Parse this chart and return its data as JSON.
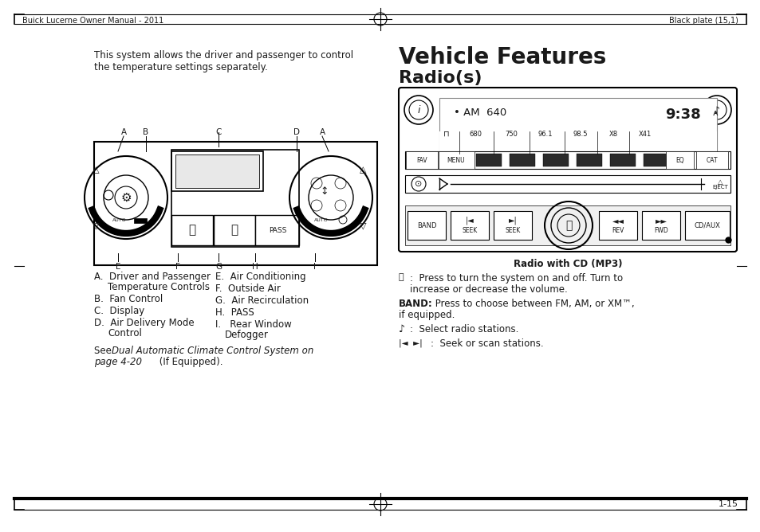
{
  "page_width": 9.54,
  "page_height": 6.68,
  "bg_color": "#ffffff",
  "header_left": "Buick Lucerne Owner Manual - 2011",
  "header_right": "Black plate (15,1)",
  "footer_text": "1-15",
  "title_vehicle": "Vehicle Features",
  "title_radio": "Radio(s)",
  "left_intro_line1": "This system allows the driver and passenger to control",
  "left_intro_line2": "the temperature settings separately.",
  "left_items_A": "A.  Driver and Passenger\n    Temperature Controls",
  "left_items_B": "B.  Fan Control",
  "left_items_C": "C.  Display",
  "left_items_D": "D.  Air Delivery Mode\n    Control",
  "right_items_E": "E.  Air Conditioning",
  "right_items_F": "F.  Outside Air",
  "right_items_G": "G.  Air Recirculation",
  "right_items_H": "H.  PASS",
  "right_items_I": "I.   Rear Window\n     Defogger",
  "see_normal": "See ",
  "see_italic": "Dual Automatic Climate Control System on\npage 4-20",
  "see_end": " (If Equipped).",
  "radio_caption": "Radio with CD (MP3)",
  "text_color": "#1a1a1a",
  "border_color": "#000000",
  "panel_bg": "#f8f8f8",
  "dark_btn": "#2a2a2a"
}
